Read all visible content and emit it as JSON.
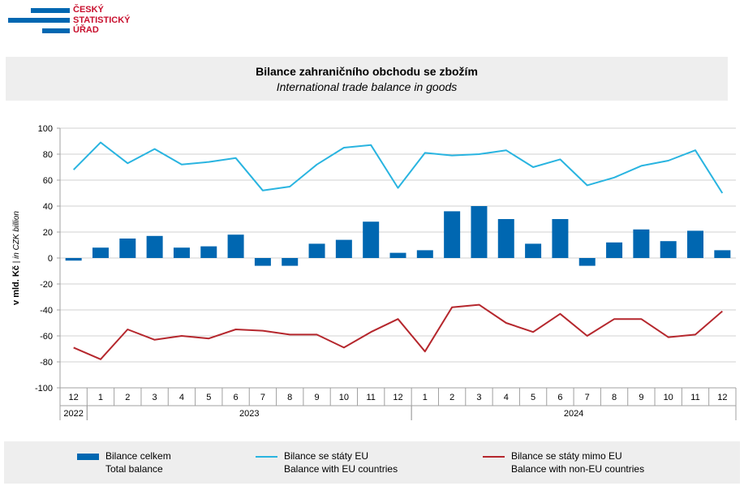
{
  "logo": {
    "line1": "ČESKÝ",
    "line2": "STATISTICKÝ",
    "line3": "ÚŘAD"
  },
  "title": "Bilance zahraničního obchodu se zbožím",
  "subtitle": "International trade balance in goods",
  "colors": {
    "total": "#0067b1",
    "eu": "#29b4e0",
    "noneu": "#b5272d"
  },
  "chart_data": {
    "type": "bar",
    "title": "Bilance zahraničního obchodu se zbožím",
    "ylabel_cz": "v mld. Kč",
    "ylabel_en": "in CZK billion",
    "ylim": [
      -100,
      100
    ],
    "yticks": [
      100,
      80,
      60,
      40,
      20,
      0,
      -20,
      -40,
      -60,
      -80,
      -100
    ],
    "grid": true,
    "categories": [
      "12",
      "1",
      "2",
      "3",
      "4",
      "5",
      "6",
      "7",
      "8",
      "9",
      "10",
      "11",
      "12",
      "1",
      "2",
      "3",
      "4",
      "5",
      "6",
      "7",
      "8",
      "9",
      "10",
      "11",
      "12"
    ],
    "years": [
      {
        "label": "2022",
        "start": 0,
        "end": 0
      },
      {
        "label": "2023",
        "start": 1,
        "end": 12
      },
      {
        "label": "2024",
        "start": 13,
        "end": 24
      }
    ],
    "series": [
      {
        "name": "Bilance celkem",
        "name_en": "Total balance",
        "type": "bar",
        "values": [
          -2,
          8,
          15,
          17,
          8,
          9,
          18,
          -6,
          -6,
          11,
          14,
          28,
          4,
          6,
          36,
          40,
          30,
          11,
          30,
          -6,
          12,
          22,
          13,
          21,
          6
        ]
      },
      {
        "name": "Bilance se státy EU",
        "name_en": "Balance with EU countries",
        "type": "line",
        "values": [
          68,
          89,
          73,
          84,
          72,
          74,
          77,
          52,
          55,
          72,
          85,
          87,
          54,
          81,
          79,
          80,
          83,
          70,
          76,
          56,
          62,
          71,
          75,
          83,
          50
        ]
      },
      {
        "name": "Bilance se státy mimo EU",
        "name_en": "Balance with non-EU countries",
        "type": "line",
        "values": [
          -69,
          -78,
          -55,
          -63,
          -60,
          -62,
          -55,
          -56,
          -59,
          -59,
          -69,
          -57,
          -47,
          -72,
          -38,
          -36,
          -50,
          -57,
          -43,
          -60,
          -47,
          -47,
          -61,
          -59,
          -41
        ]
      }
    ]
  }
}
